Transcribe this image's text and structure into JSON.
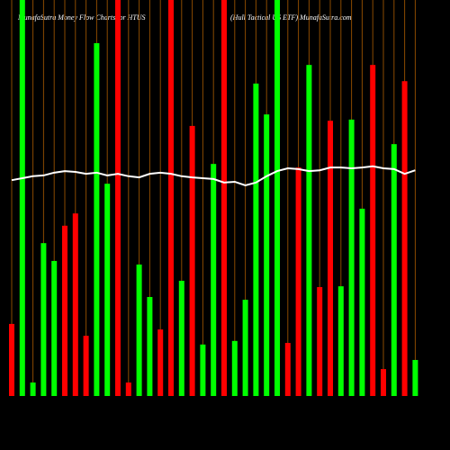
{
  "chart_data": {
    "type": "bar",
    "title": "MunafaSutra  Money Flow  Charts for HTUS",
    "subtitle": "(Hull Tactical US ETF) MunafaSutra.com",
    "categories": [
      null,
      null,
      null,
      null,
      null,
      null,
      null,
      null,
      null,
      null,
      null,
      null,
      null,
      null,
      null,
      null,
      null,
      null,
      null,
      null,
      null,
      null,
      null,
      null,
      null,
      null,
      null,
      null,
      null,
      null,
      null,
      null,
      null,
      null,
      null,
      null,
      null,
      null,
      null
    ],
    "ylim": [
      0,
      100
    ],
    "series": [
      {
        "values": [
          18.2,
          100,
          3.4,
          38.6,
          34.1,
          43.0,
          46.1,
          15.2,
          89.1,
          53.6,
          100,
          3.4,
          33.2,
          25.0,
          16.8,
          100,
          29.1,
          68.2,
          13.0,
          58.6,
          100,
          13.9,
          24.3,
          78.9,
          71.1,
          100,
          13.4,
          57.7,
          83.6,
          27.5,
          69.5,
          27.7,
          69.8,
          47.3,
          83.6,
          6.8,
          63.6,
          79.5,
          9.1
        ],
        "colors": [
          "#ff0000",
          "#00ff00",
          "#00ff00",
          "#00ff00",
          "#00ff00",
          "#ff0000",
          "#ff0000",
          "#ff0000",
          "#00ff00",
          "#00ff00",
          "#ff0000",
          "#ff0000",
          "#00ff00",
          "#00ff00",
          "#ff0000",
          "#ff0000",
          "#00ff00",
          "#ff0000",
          "#00ff00",
          "#00ff00",
          "#ff0000",
          "#00ff00",
          "#00ff00",
          "#00ff00",
          "#00ff00",
          "#00ff00",
          "#ff0000",
          "#ff0000",
          "#00ff00",
          "#ff0000",
          "#ff0000",
          "#00ff00",
          "#00ff00",
          "#00ff00",
          "#ff0000",
          "#ff0000",
          "#00ff00",
          "#ff0000",
          "#00ff00"
        ]
      },
      {
        "type": "line",
        "color": "#ffffff",
        "values": [
          54.5,
          55,
          55.5,
          55.7,
          56.4,
          56.8,
          56.6,
          56.1,
          56.4,
          55.7,
          56.1,
          55.5,
          55.2,
          56.1,
          56.4,
          56.1,
          55.5,
          55.2,
          55,
          54.8,
          53.9,
          54.1,
          53.2,
          53.9,
          55.5,
          56.8,
          57.5,
          57.3,
          56.8,
          57,
          57.7,
          57.7,
          57.5,
          57.7,
          58,
          57.5,
          57.3,
          56.1,
          57
        ]
      }
    ]
  }
}
